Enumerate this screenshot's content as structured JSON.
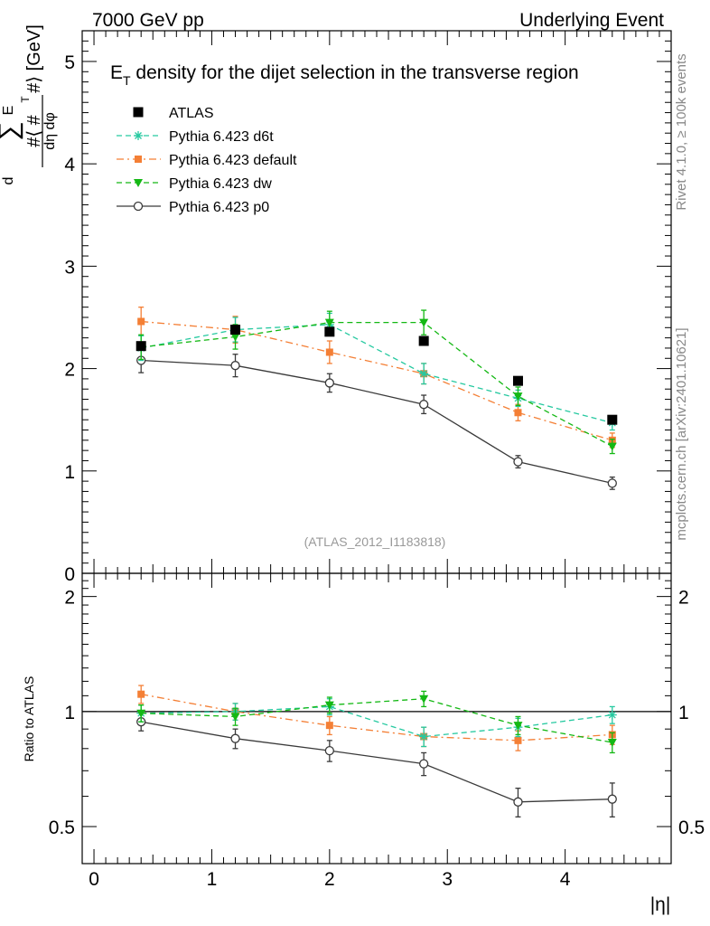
{
  "header": {
    "left": "7000 GeV pp",
    "right": "Underlying Event"
  },
  "side_labels": {
    "rivet": "Rivet 4.1.0, ≥ 100k events",
    "mcplots": "mcplots.cern.ch [arXiv:2401.10621]"
  },
  "colors": {
    "ATLAS": "#000000",
    "d6t": "#26c9a0",
    "default": "#f47f35",
    "dw": "#14b814",
    "p0": "#3a3a3a"
  },
  "chart_data": [
    {
      "type": "line",
      "panel": "main",
      "title_main": "E",
      "title_sub": "T",
      "title_rest": " density  for the dijet selection in the transverse region",
      "ylabel": "#⟨ d ∑ E_T / dη dφ #⟩ [GeV]",
      "ylabel_text": {
        "top": "d",
        "sum": "∑",
        "e": "E",
        "t": "T",
        "left": "#⟨ #",
        "right": "#⟩ [GeV]",
        "denominator": "dη dφ"
      },
      "xlabel": "|η|",
      "xlim": [
        -0.1,
        4.9
      ],
      "ylim": [
        0,
        5.3
      ],
      "y_ticks": [
        0,
        1,
        2,
        3,
        4,
        5
      ],
      "y_tick_labels": [
        "0",
        "1",
        "2",
        "3",
        "4",
        "5"
      ],
      "legend_position": "top-left",
      "annotation": "(ATLAS_2012_I1183818)",
      "x": [
        0.4,
        1.2,
        2.0,
        2.8,
        3.6,
        4.4
      ],
      "series": [
        {
          "key": "ATLAS",
          "name": "ATLAS",
          "marker": "square-filled",
          "line": "none",
          "values": [
            2.22,
            2.38,
            2.36,
            2.27,
            1.88,
            1.5
          ],
          "errors": [
            0.04,
            0.04,
            0.04,
            0.04,
            0.03,
            0.03
          ]
        },
        {
          "key": "d6t",
          "name": "Pythia 6.423 d6t",
          "marker": "star",
          "line": "dashed",
          "values": [
            2.2,
            2.38,
            2.43,
            1.95,
            1.71,
            1.47
          ],
          "errors": [
            0.12,
            0.12,
            0.11,
            0.1,
            0.08,
            0.07
          ]
        },
        {
          "key": "default",
          "name": "Pythia 6.423 default",
          "marker": "square-filled",
          "line": "dashdot",
          "values": [
            2.46,
            2.38,
            2.16,
            1.95,
            1.57,
            1.3
          ],
          "errors": [
            0.14,
            0.13,
            0.11,
            0.1,
            0.08,
            0.07
          ]
        },
        {
          "key": "dw",
          "name": "Pythia 6.423 dw",
          "marker": "triangle-down",
          "line": "dashed",
          "values": [
            2.21,
            2.31,
            2.45,
            2.45,
            1.73,
            1.24
          ],
          "errors": [
            0.12,
            0.12,
            0.11,
            0.12,
            0.09,
            0.07
          ]
        },
        {
          "key": "p0",
          "name": "Pythia 6.423 p0",
          "marker": "circle-open",
          "line": "solid",
          "values": [
            2.08,
            2.03,
            1.86,
            1.65,
            1.09,
            0.88
          ],
          "errors": [
            0.12,
            0.11,
            0.09,
            0.09,
            0.06,
            0.06
          ]
        }
      ]
    },
    {
      "type": "line",
      "panel": "ratio",
      "ylabel": "Ratio to ATLAS",
      "xlabel": "|η|",
      "xlim": [
        -0.1,
        4.9
      ],
      "ylim": [
        0.4,
        2.3
      ],
      "y_scale": "log",
      "y_ticks": [
        0.5,
        1,
        2
      ],
      "y_tick_labels": [
        "0.5",
        "1",
        "2"
      ],
      "x_ticks": [
        0,
        1,
        2,
        3,
        4
      ],
      "x_tick_labels": [
        "0",
        "1",
        "2",
        "3",
        "4"
      ],
      "reference_line": 1,
      "x": [
        0.4,
        1.2,
        2.0,
        2.8,
        3.6,
        4.4
      ],
      "series": [
        {
          "key": "d6t",
          "name": "Pythia 6.423 d6t",
          "marker": "star",
          "line": "dashed",
          "values": [
            0.99,
            1.0,
            1.03,
            0.86,
            0.91,
            0.98
          ],
          "errors": [
            0.05,
            0.05,
            0.05,
            0.05,
            0.05,
            0.05
          ]
        },
        {
          "key": "default",
          "name": "Pythia 6.423 default",
          "marker": "square-filled",
          "line": "dashdot",
          "values": [
            1.11,
            1.0,
            0.92,
            0.86,
            0.84,
            0.87
          ],
          "errors": [
            0.06,
            0.05,
            0.05,
            0.05,
            0.05,
            0.05
          ]
        },
        {
          "key": "dw",
          "name": "Pythia 6.423 dw",
          "marker": "triangle-down",
          "line": "dashed",
          "values": [
            0.99,
            0.97,
            1.04,
            1.08,
            0.92,
            0.83
          ],
          "errors": [
            0.05,
            0.05,
            0.05,
            0.05,
            0.05,
            0.05
          ]
        },
        {
          "key": "p0",
          "name": "Pythia 6.423 p0",
          "marker": "circle-open",
          "line": "solid",
          "values": [
            0.94,
            0.85,
            0.79,
            0.73,
            0.58,
            0.59
          ],
          "errors": [
            0.05,
            0.05,
            0.05,
            0.05,
            0.05,
            0.06
          ]
        }
      ]
    }
  ]
}
